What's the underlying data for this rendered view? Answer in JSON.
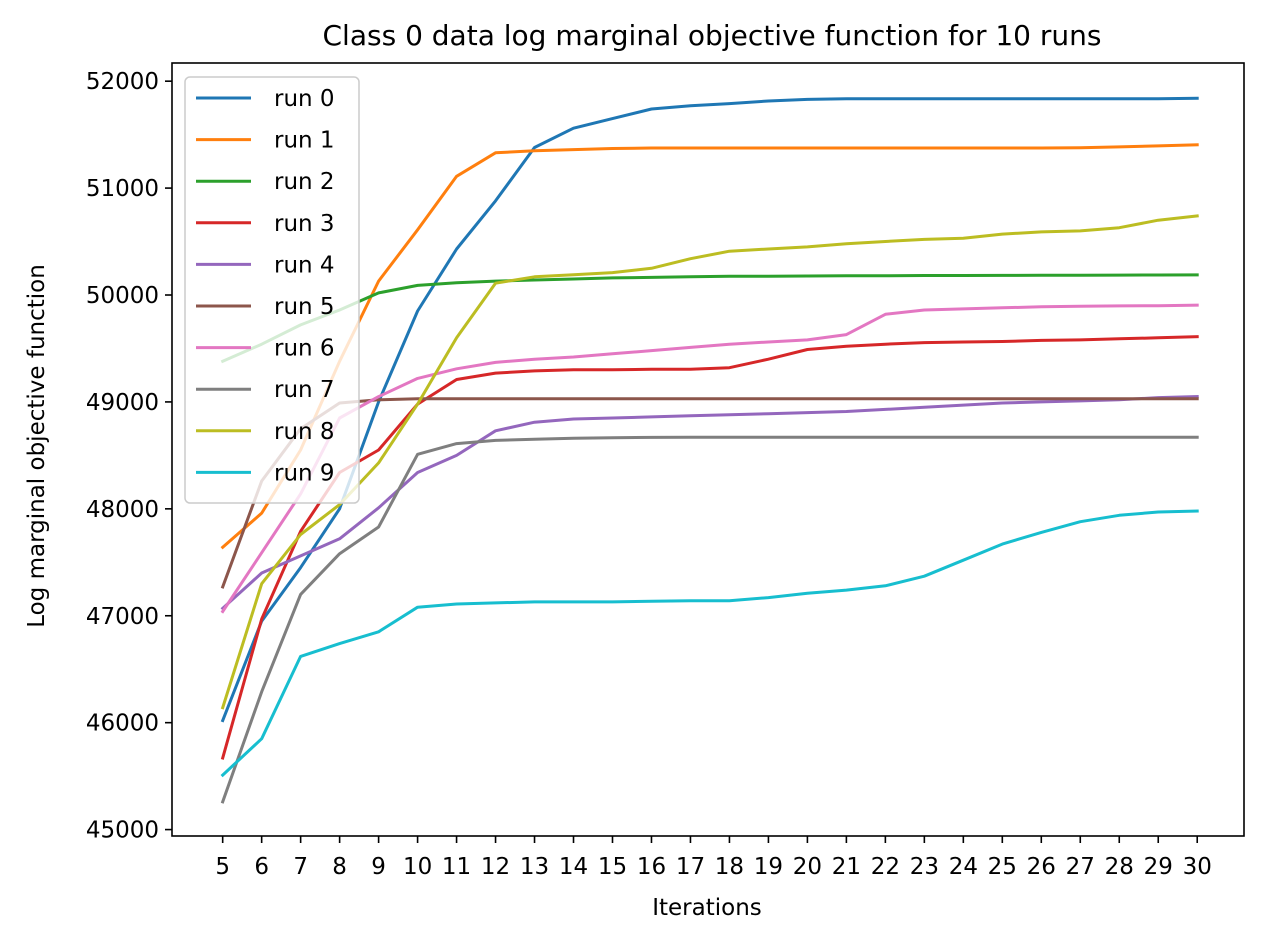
{
  "chart_data": {
    "type": "line",
    "title": "Class 0 data log marginal objective function for 10 runs",
    "xlabel": "Iterations",
    "ylabel": "Log marginal objective function",
    "xlim": [
      3.7,
      31.2
    ],
    "ylim": [
      44940,
      52170
    ],
    "x": [
      5,
      6,
      7,
      8,
      9,
      10,
      11,
      12,
      13,
      14,
      15,
      16,
      17,
      18,
      19,
      20,
      21,
      22,
      23,
      24,
      25,
      26,
      27,
      28,
      29,
      30
    ],
    "xticks": [
      "5",
      "6",
      "7",
      "8",
      "9",
      "10",
      "11",
      "12",
      "13",
      "14",
      "15",
      "16",
      "17",
      "18",
      "19",
      "20",
      "21",
      "22",
      "23",
      "24",
      "25",
      "26",
      "27",
      "28",
      "29",
      "30"
    ],
    "yticks": [
      "45000",
      "46000",
      "47000",
      "48000",
      "49000",
      "50000",
      "51000",
      "52000"
    ],
    "grid": false,
    "legend_position": "upper left",
    "series": [
      {
        "name": "run 0",
        "color": "#1f77b4",
        "values": [
          46020,
          46950,
          47450,
          48000,
          49000,
          49850,
          50430,
          50880,
          51380,
          51560,
          51650,
          51740,
          51770,
          51790,
          51815,
          51830,
          51835,
          51835,
          51835,
          51835,
          51835,
          51835,
          51835,
          51835,
          51835,
          51840
        ]
      },
      {
        "name": "run 1",
        "color": "#ff7f0e",
        "values": [
          47640,
          47960,
          48550,
          49380,
          50130,
          50610,
          51110,
          51330,
          51350,
          51360,
          51370,
          51375,
          51375,
          51375,
          51375,
          51375,
          51375,
          51375,
          51375,
          51375,
          51375,
          51375,
          51378,
          51385,
          51395,
          51405
        ]
      },
      {
        "name": "run 2",
        "color": "#2ca02c",
        "values": [
          49380,
          49540,
          49720,
          49860,
          50020,
          50090,
          50115,
          50130,
          50140,
          50150,
          50160,
          50165,
          50170,
          50175,
          50175,
          50178,
          50180,
          50180,
          50182,
          50182,
          50183,
          50185,
          50185,
          50186,
          50187,
          50188
        ]
      },
      {
        "name": "run 3",
        "color": "#d62728",
        "values": [
          45670,
          46970,
          47790,
          48340,
          48550,
          48980,
          49210,
          49270,
          49290,
          49300,
          49300,
          49305,
          49305,
          49320,
          49400,
          49490,
          49520,
          49540,
          49555,
          49560,
          49565,
          49575,
          49580,
          49590,
          49600,
          49610
        ]
      },
      {
        "name": "run 4",
        "color": "#9467bd",
        "values": [
          47070,
          47400,
          47560,
          47720,
          48010,
          48340,
          48500,
          48730,
          48810,
          48840,
          48850,
          48860,
          48870,
          48880,
          48890,
          48900,
          48910,
          48930,
          48950,
          48970,
          48990,
          49000,
          49010,
          49020,
          49040,
          49050
        ]
      },
      {
        "name": "run 5",
        "color": "#8c564b",
        "values": [
          47270,
          48260,
          48750,
          48990,
          49020,
          49030,
          49030,
          49030,
          49030,
          49030,
          49030,
          49030,
          49030,
          49030,
          49030,
          49030,
          49030,
          49030,
          49030,
          49030,
          49030,
          49030,
          49030,
          49030,
          49030,
          49030
        ]
      },
      {
        "name": "run 6",
        "color": "#e377c2",
        "values": [
          47040,
          47590,
          48140,
          48850,
          49050,
          49220,
          49310,
          49370,
          49400,
          49420,
          49450,
          49480,
          49510,
          49540,
          49560,
          49580,
          49630,
          49820,
          49860,
          49870,
          49880,
          49890,
          49895,
          49898,
          49900,
          49905
        ]
      },
      {
        "name": "run 7",
        "color": "#7f7f7f",
        "values": [
          45260,
          46290,
          47200,
          47580,
          47830,
          48510,
          48610,
          48640,
          48650,
          48660,
          48665,
          48668,
          48670,
          48670,
          48670,
          48670,
          48670,
          48670,
          48670,
          48670,
          48670,
          48670,
          48670,
          48670,
          48670,
          48670
        ]
      },
      {
        "name": "run 8",
        "color": "#bcbd22",
        "values": [
          46140,
          47300,
          47760,
          48040,
          48430,
          48980,
          49600,
          50110,
          50170,
          50190,
          50210,
          50250,
          50340,
          50410,
          50430,
          50450,
          50480,
          50500,
          50520,
          50530,
          50570,
          50590,
          50600,
          50630,
          50700,
          50740
        ]
      },
      {
        "name": "run 9",
        "color": "#17becf",
        "values": [
          45510,
          45850,
          46620,
          46740,
          46850,
          47080,
          47110,
          47120,
          47130,
          47130,
          47130,
          47135,
          47140,
          47140,
          47170,
          47210,
          47240,
          47280,
          47370,
          47520,
          47670,
          47780,
          47880,
          47940,
          47970,
          47980
        ]
      }
    ]
  }
}
